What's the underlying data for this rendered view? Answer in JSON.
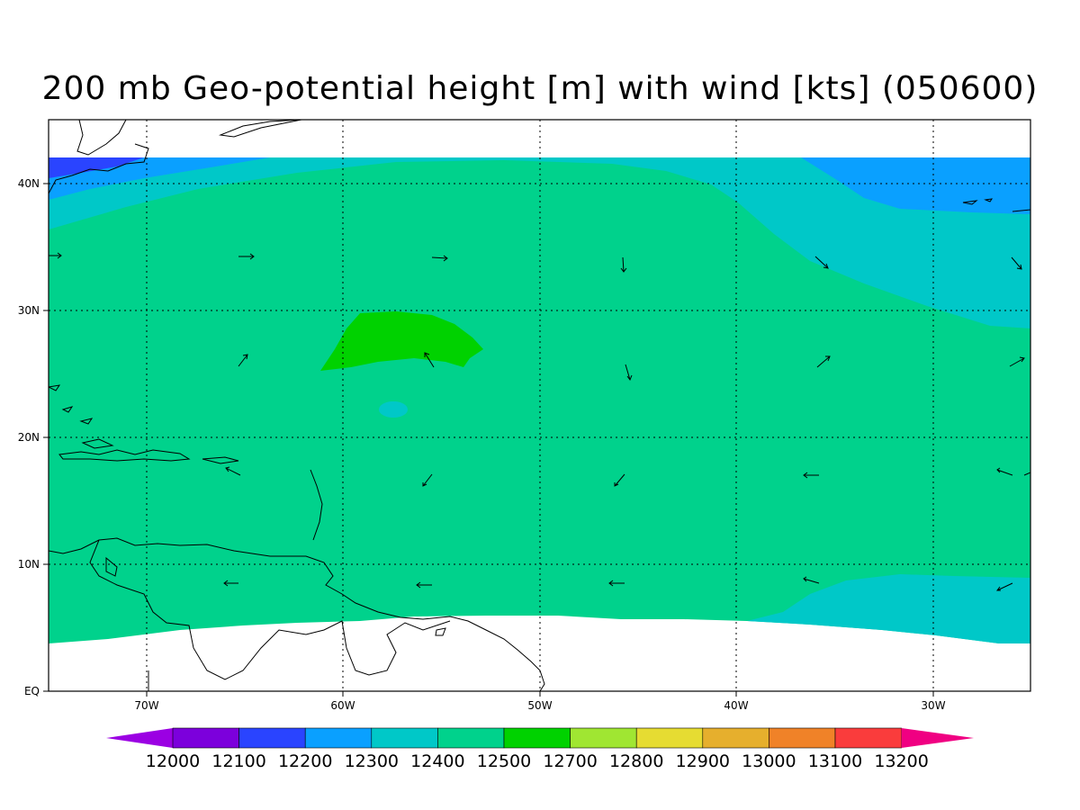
{
  "title": "200 mb Geo-potential height [m] with wind [kts] (050600)",
  "lat_labels": [
    "40N",
    "30N",
    "20N",
    "10N",
    "EQ"
  ],
  "lon_labels": [
    "70W",
    "60W",
    "50W",
    "40W",
    "30W"
  ],
  "colorbar": {
    "levels": [
      "12000",
      "12100",
      "12200",
      "12300",
      "12400",
      "12500",
      "12700",
      "12800",
      "12900",
      "13000",
      "13100",
      "13200"
    ],
    "colors": [
      "#9b00e3",
      "#7c00dc",
      "#2a44ff",
      "#0aa0ff",
      "#00c8c8",
      "#00d28c",
      "#00d200",
      "#a0e632",
      "#e6dc32",
      "#e6af2d",
      "#f08228",
      "#fa3c3c",
      "#f00082"
    ]
  },
  "map": {
    "land_color": "#ffffff",
    "background_green": "#00d28c"
  }
}
